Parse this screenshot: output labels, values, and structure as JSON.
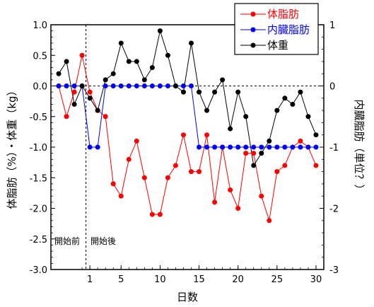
{
  "chart_data": {
    "type": "line",
    "xlabel": "日数",
    "ylabel_left": "体脂肪（%）・体重（kg）",
    "ylabel_right": "内臓脂肪（単位？）",
    "ylim_left": [
      -3.0,
      1.0
    ],
    "ylim_right": [
      -3,
      1
    ],
    "x_tick_labels": [
      "1",
      "5",
      "10",
      "15",
      "20",
      "25",
      "30"
    ],
    "y_tick_labels_left": [
      "1.0",
      "0.5",
      "0.0",
      "-0.5",
      "-1.0",
      "-1.5",
      "-2.0",
      "-2.5",
      "-3.0"
    ],
    "y_tick_labels_right": [
      "1",
      "0",
      "-1",
      "-2",
      "-3"
    ],
    "annotations": {
      "before": "開始前",
      "after": "開始後"
    },
    "colors": {
      "body_fat": "#ff0000",
      "visceral": "#0000ff",
      "weight": "#000000"
    },
    "series": [
      {
        "name": "体脂肪",
        "axis": "left",
        "x": [
          -3,
          -2,
          -1,
          0,
          1,
          2,
          3,
          4,
          5,
          6,
          7,
          8,
          9,
          10,
          11,
          12,
          13,
          14,
          15,
          16,
          17,
          18,
          19,
          20,
          21,
          22,
          23,
          24,
          25,
          26,
          27,
          28,
          29,
          30
        ],
        "y": [
          0,
          -0.5,
          -0.1,
          0.5,
          -0.1,
          -0.4,
          -0.5,
          -1.6,
          -1.8,
          -1.2,
          -0.9,
          -1.5,
          -2.1,
          -2.1,
          -1.5,
          -1.3,
          -0.8,
          -1.4,
          -1.4,
          -0.8,
          -1.9,
          -1.0,
          -1.7,
          -2.0,
          -1.1,
          -1.1,
          -1.8,
          -2.2,
          -1.4,
          -1.3,
          -1.0,
          -0.9,
          -1.0,
          -1.3
        ]
      },
      {
        "name": "内臓脂肪",
        "axis": "right",
        "x": [
          -3,
          -2,
          -1,
          0,
          1,
          2,
          3,
          4,
          5,
          6,
          7,
          8,
          9,
          10,
          11,
          12,
          13,
          14,
          15,
          16,
          17,
          18,
          19,
          20,
          21,
          22,
          23,
          24,
          25,
          26,
          27,
          28,
          29,
          30
        ],
        "y": [
          0,
          0,
          0,
          0,
          -1,
          -1,
          0,
          0,
          0,
          0,
          0,
          0,
          0,
          0,
          0,
          0,
          0,
          0,
          -1,
          -1,
          -1,
          -1,
          -1,
          -1,
          -1,
          -1,
          -1,
          -1,
          -1,
          -1,
          -1,
          -1,
          -1,
          -1
        ]
      },
      {
        "name": "体重",
        "axis": "left",
        "x": [
          -3,
          -2,
          -1,
          0,
          1,
          2,
          3,
          4,
          5,
          6,
          7,
          8,
          9,
          10,
          11,
          12,
          13,
          14,
          15,
          16,
          17,
          18,
          19,
          20,
          21,
          22,
          23,
          24,
          25,
          26,
          27,
          28,
          29,
          30
        ],
        "y": [
          0.2,
          0.4,
          -0.3,
          0,
          -0.2,
          -0.4,
          0.1,
          0.2,
          0.7,
          0.4,
          0.4,
          0.1,
          0.3,
          0.9,
          0.5,
          0,
          -0.1,
          0.7,
          -0.1,
          -0.4,
          -0.1,
          0.1,
          -0.7,
          -0.1,
          -0.5,
          -1.3,
          -1.1,
          -0.9,
          -0.4,
          -0.2,
          -0.3,
          -0.1,
          -0.5,
          -0.8
        ]
      }
    ],
    "legend": {
      "placement": "top-right"
    }
  }
}
